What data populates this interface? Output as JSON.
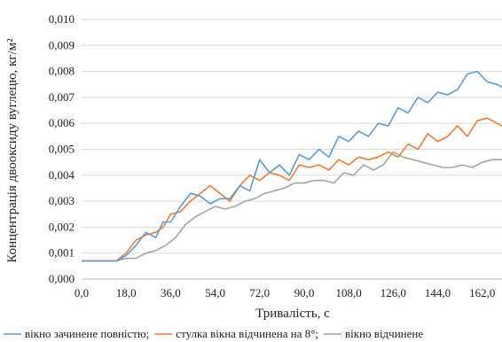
{
  "chart_data": {
    "type": "line",
    "title": "",
    "xlabel": "Тривалість, с",
    "ylabel": "Концентрація двооксиду вуглецю, кг/м²",
    "xlim": [
      0,
      170
    ],
    "ylim": [
      0,
      0.01
    ],
    "x_ticks": [
      "0,0",
      "18,0",
      "36,0",
      "54,0",
      "72,0",
      "90,0",
      "108,0",
      "126,0",
      "144,0",
      "162,0"
    ],
    "y_ticks": [
      "0,000",
      "0,001",
      "0,002",
      "0,003",
      "0,004",
      "0,005",
      "0,006",
      "0,007",
      "0,008",
      "0,009",
      "0,010"
    ],
    "grid": "horizontal",
    "legend_position": "bottom",
    "series": [
      {
        "name": "вікно зачинене повністю;",
        "color": "#5b9bd5",
        "points": [
          [
            0,
            0.0007
          ],
          [
            14,
            0.0007
          ],
          [
            18,
            0.0009
          ],
          [
            22,
            0.0013
          ],
          [
            26,
            0.0018
          ],
          [
            30,
            0.0016
          ],
          [
            33,
            0.0022
          ],
          [
            36,
            0.0022
          ],
          [
            40,
            0.0028
          ],
          [
            44,
            0.0033
          ],
          [
            48,
            0.0032
          ],
          [
            52,
            0.0029
          ],
          [
            56,
            0.0031
          ],
          [
            60,
            0.0031
          ],
          [
            64,
            0.0036
          ],
          [
            68,
            0.0034
          ],
          [
            72,
            0.0046
          ],
          [
            76,
            0.0041
          ],
          [
            80,
            0.0044
          ],
          [
            84,
            0.004
          ],
          [
            88,
            0.0048
          ],
          [
            92,
            0.0046
          ],
          [
            96,
            0.005
          ],
          [
            100,
            0.0047
          ],
          [
            104,
            0.0055
          ],
          [
            108,
            0.0053
          ],
          [
            112,
            0.0057
          ],
          [
            116,
            0.0055
          ],
          [
            120,
            0.006
          ],
          [
            124,
            0.0059
          ],
          [
            128,
            0.0066
          ],
          [
            132,
            0.0064
          ],
          [
            136,
            0.007
          ],
          [
            140,
            0.0068
          ],
          [
            144,
            0.0072
          ],
          [
            148,
            0.0071
          ],
          [
            152,
            0.0073
          ],
          [
            156,
            0.0079
          ],
          [
            160,
            0.008
          ],
          [
            164,
            0.0076
          ],
          [
            168,
            0.0075
          ],
          [
            170,
            0.0074
          ]
        ]
      },
      {
        "name": "стулка вікна відчинена на 8°;",
        "color": "#ed7d31",
        "points": [
          [
            0,
            0.0007
          ],
          [
            14,
            0.0007
          ],
          [
            18,
            0.001
          ],
          [
            22,
            0.0015
          ],
          [
            26,
            0.0017
          ],
          [
            30,
            0.0018
          ],
          [
            33,
            0.002
          ],
          [
            36,
            0.0025
          ],
          [
            40,
            0.0026
          ],
          [
            44,
            0.003
          ],
          [
            48,
            0.0033
          ],
          [
            52,
            0.0036
          ],
          [
            56,
            0.0033
          ],
          [
            60,
            0.003
          ],
          [
            64,
            0.0036
          ],
          [
            68,
            0.004
          ],
          [
            72,
            0.0038
          ],
          [
            76,
            0.0041
          ],
          [
            80,
            0.004
          ],
          [
            84,
            0.0038
          ],
          [
            88,
            0.0044
          ],
          [
            92,
            0.0043
          ],
          [
            96,
            0.0044
          ],
          [
            100,
            0.0042
          ],
          [
            104,
            0.0046
          ],
          [
            108,
            0.0044
          ],
          [
            112,
            0.0047
          ],
          [
            116,
            0.0046
          ],
          [
            120,
            0.0047
          ],
          [
            124,
            0.0049
          ],
          [
            128,
            0.0047
          ],
          [
            132,
            0.0052
          ],
          [
            136,
            0.005
          ],
          [
            140,
            0.0056
          ],
          [
            144,
            0.0053
          ],
          [
            148,
            0.0055
          ],
          [
            152,
            0.0059
          ],
          [
            156,
            0.0055
          ],
          [
            160,
            0.0061
          ],
          [
            164,
            0.0062
          ],
          [
            168,
            0.006
          ],
          [
            170,
            0.0059
          ]
        ]
      },
      {
        "name": "вікно відчинене",
        "color": "#a5a5a5",
        "points": [
          [
            0,
            0.0007
          ],
          [
            14,
            0.0007
          ],
          [
            18,
            0.0008
          ],
          [
            22,
            0.0008
          ],
          [
            26,
            0.001
          ],
          [
            30,
            0.0011
          ],
          [
            34,
            0.0013
          ],
          [
            38,
            0.0016
          ],
          [
            42,
            0.0021
          ],
          [
            46,
            0.0024
          ],
          [
            50,
            0.0026
          ],
          [
            54,
            0.0028
          ],
          [
            58,
            0.0027
          ],
          [
            62,
            0.0028
          ],
          [
            66,
            0.003
          ],
          [
            70,
            0.0031
          ],
          [
            74,
            0.0033
          ],
          [
            78,
            0.0034
          ],
          [
            82,
            0.0035
          ],
          [
            86,
            0.0037
          ],
          [
            90,
            0.0037
          ],
          [
            94,
            0.0038
          ],
          [
            98,
            0.0038
          ],
          [
            102,
            0.0037
          ],
          [
            106,
            0.0041
          ],
          [
            110,
            0.004
          ],
          [
            114,
            0.0044
          ],
          [
            118,
            0.0042
          ],
          [
            122,
            0.0044
          ],
          [
            126,
            0.0049
          ],
          [
            130,
            0.0047
          ],
          [
            134,
            0.0046
          ],
          [
            138,
            0.0045
          ],
          [
            142,
            0.0044
          ],
          [
            146,
            0.0043
          ],
          [
            150,
            0.0043
          ],
          [
            154,
            0.0044
          ],
          [
            158,
            0.0043
          ],
          [
            162,
            0.0045
          ],
          [
            166,
            0.0046
          ],
          [
            170,
            0.0046
          ]
        ]
      }
    ]
  }
}
